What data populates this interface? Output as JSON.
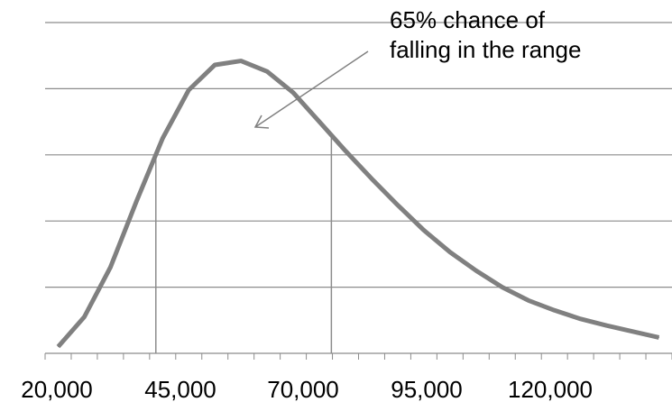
{
  "chart_data": {
    "type": "line",
    "title": "",
    "xlabel": "",
    "ylabel": "",
    "x_ticks": [
      "20,000",
      "45,000",
      "70,000",
      "95,000",
      "120,000"
    ],
    "xlim": [
      20000,
      140000
    ],
    "ylim": [
      0,
      5
    ],
    "grid": true,
    "y_tick_labels_shown": false,
    "series": [
      {
        "color": "#808080",
        "x": [
          22500,
          27500,
          32500,
          37500,
          42500,
          47500,
          52500,
          57500,
          62500,
          67500,
          72500,
          77500,
          82500,
          87500,
          92500,
          97500,
          102500,
          107500,
          112500,
          117500,
          122500,
          127500,
          132500,
          137500
        ],
        "y": [
          0.1,
          0.55,
          1.3,
          2.3,
          3.25,
          3.98,
          4.36,
          4.42,
          4.26,
          3.94,
          3.5,
          3.06,
          2.64,
          2.24,
          1.86,
          1.53,
          1.25,
          1.0,
          0.8,
          0.65,
          0.52,
          0.42,
          0.33,
          0.24
        ]
      }
    ],
    "reference_lines_x": [
      41200,
      74800
    ],
    "annotation": {
      "lines": [
        "65% chance of",
        "falling in the range"
      ],
      "arrow": true
    }
  }
}
